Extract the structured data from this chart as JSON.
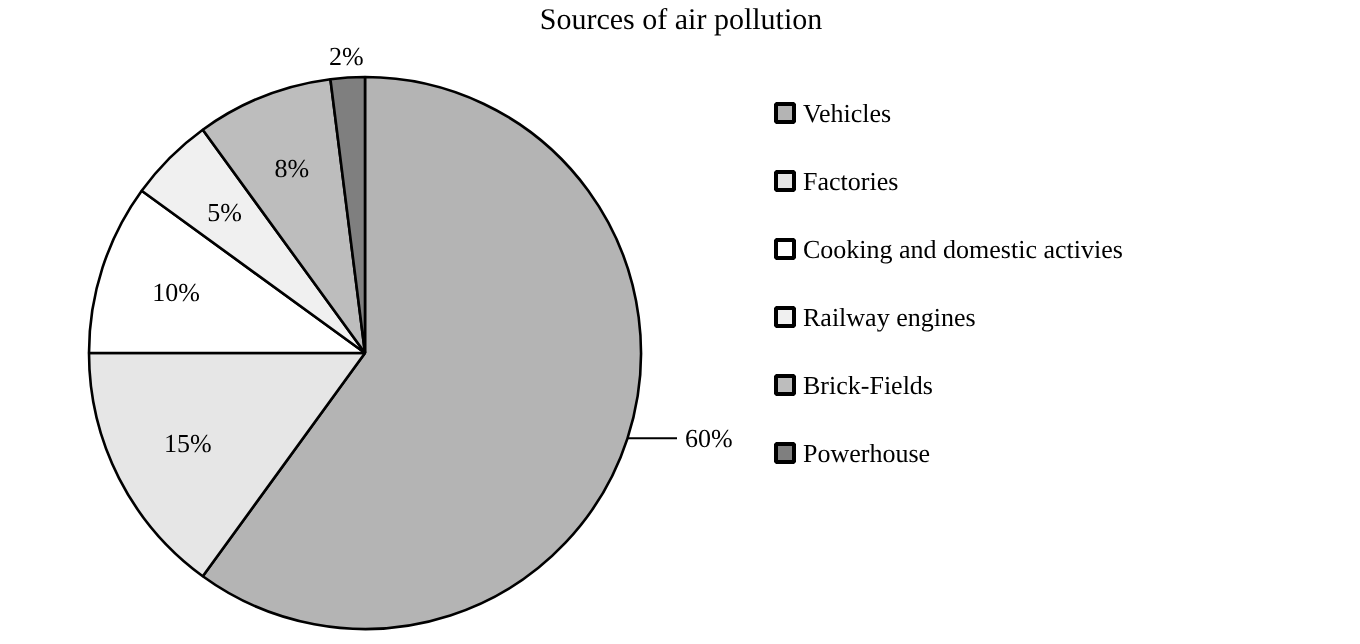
{
  "chart_data": {
    "type": "pie",
    "title": "Sources of air pollution",
    "categories": [
      "Vehicles",
      "Factories",
      "Cooking and domestic activies",
      "Railway engines",
      "Brick-Fields",
      "Powerhouse"
    ],
    "values": [
      60,
      15,
      10,
      5,
      8,
      2
    ],
    "colors": [
      "#b4b4b4",
      "#e6e6e6",
      "#ffffff",
      "#f0f0f0",
      "#bdbdbd",
      "#7f7f7f"
    ],
    "value_labels": [
      "60%",
      "15%",
      "10%",
      "5%",
      "8%",
      "2%"
    ],
    "legend": "right"
  }
}
